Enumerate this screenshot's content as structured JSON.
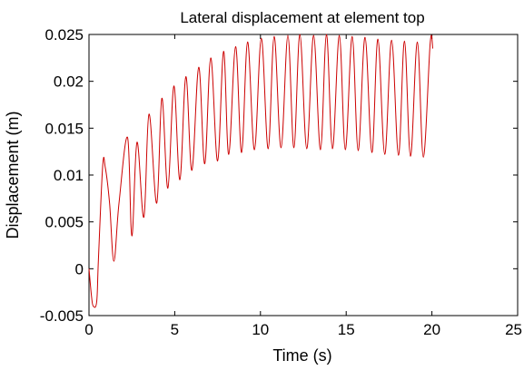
{
  "chart_data": {
    "type": "line",
    "title": "Lateral displacement at element top",
    "xlabel": "Time (s)",
    "ylabel": "Displacement (m)",
    "xlim": [
      0,
      25
    ],
    "ylim": [
      -0.005,
      0.025
    ],
    "xticks": [
      0,
      5,
      10,
      15,
      20,
      25
    ],
    "xtick_labels": [
      "0",
      "5",
      "10",
      "15",
      "20",
      "25"
    ],
    "yticks": [
      -0.005,
      0,
      0.005,
      0.01,
      0.015,
      0.02,
      0.025
    ],
    "ytick_labels": [
      "-0.005",
      "0",
      "0.005",
      "0.01",
      "0.015",
      "0.02",
      "0.025"
    ],
    "grid": false,
    "legend": false,
    "line_color": "#cc0000",
    "series": [
      {
        "x": [
          0,
          0.15,
          0.25,
          0.45,
          0.55,
          0.8,
          0.95,
          1.2,
          1.45,
          1.75,
          2.25,
          2.5,
          2.8,
          3.2,
          3.5,
          3.95,
          4.25,
          4.6,
          4.95,
          5.3,
          5.65,
          6.0,
          6.4,
          6.75,
          7.1,
          7.5,
          7.85,
          8.15,
          8.55,
          8.9,
          9.25,
          9.65,
          10.05,
          10.45,
          10.8,
          11.2,
          11.6,
          11.95,
          12.3,
          12.7,
          13.1,
          13.5,
          13.85,
          14.2,
          14.6,
          14.95,
          15.35,
          15.7,
          16.1,
          16.5,
          16.85,
          17.25,
          17.65,
          18.05,
          18.4,
          18.75,
          19.15,
          19.5,
          19.9,
          20.05
        ],
        "y": [
          0.0,
          -0.003,
          -0.004,
          -0.0035,
          0.001,
          0.011,
          0.0108,
          0.007,
          0.0008,
          0.007,
          0.014,
          0.0035,
          0.0135,
          0.0055,
          0.0165,
          0.007,
          0.0182,
          0.0086,
          0.0195,
          0.0095,
          0.0205,
          0.0105,
          0.0215,
          0.0112,
          0.0225,
          0.0115,
          0.0232,
          0.0122,
          0.0237,
          0.0124,
          0.0242,
          0.0127,
          0.0246,
          0.0128,
          0.0248,
          0.0129,
          0.0249,
          0.0129,
          0.025,
          0.0128,
          0.0249,
          0.0127,
          0.025,
          0.0128,
          0.0249,
          0.0127,
          0.0248,
          0.0126,
          0.0247,
          0.0124,
          0.0245,
          0.0122,
          0.0244,
          0.0121,
          0.0243,
          0.012,
          0.0242,
          0.0119,
          0.0241,
          0.0235
        ]
      }
    ]
  }
}
